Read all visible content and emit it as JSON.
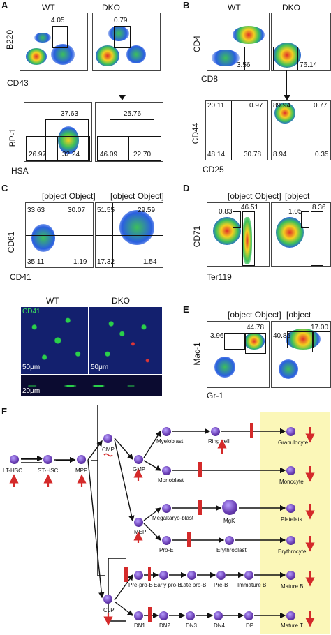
{
  "panels": {
    "A": {
      "label": "A",
      "wt": "WT",
      "dko": "DKO",
      "top": {
        "ylabel": "B220",
        "xlabel": "CD43",
        "wt_val": "4.05",
        "dko_val": "0.79"
      },
      "bottom": {
        "ylabel": "BP-1",
        "xlabel": "HSA",
        "wt": {
          "top": "37.63",
          "bl": "26.97",
          "br": "32.24"
        },
        "dko": {
          "top": "25.76",
          "bl": "46.09",
          "br": "22.70"
        }
      }
    },
    "B": {
      "label": "B",
      "wt": "WT",
      "dko": "DKO",
      "top": {
        "ylabel": "CD4",
        "xlabel": "CD8",
        "wt_val": "3.56",
        "dko_val": "76.14"
      },
      "bottom": {
        "ylabel": "CD44",
        "xlabel": "CD25",
        "wt": {
          "tl": "20.11",
          "tr": "0.97",
          "bl": "48.14",
          "br": "30.78"
        },
        "dko": {
          "tl": "89.94",
          "tr": "0.77",
          "bl": "8.94",
          "br": "0.35"
        }
      }
    },
    "C": {
      "label": "C",
      "wt": {
        "tl": "33.63",
        "tr": "30.07",
        "bl": "35.11",
        "br": "1.19"
      },
      "dko": {
        "tl": "51.55",
        "tr": "29.59",
        "bl": "17.32",
        "br": "1.54"
      },
      "ylabel": "CD61",
      "xlabel": "CD41",
      "micro": {
        "wt": "WT",
        "dko": "DKO",
        "stain": "CD41",
        "scale1": "50μm",
        "scale2": "50μm",
        "scale3": "20μm"
      }
    },
    "D": {
      "label": "D",
      "wt": {
        "a": "0.83",
        "b": "46.51"
      },
      "dko": {
        "a": "1.05",
        "b": "8.36"
      },
      "ylabel": "CD71",
      "xlabel": "Ter119"
    },
    "E": {
      "label": "E",
      "wt": {
        "a": "3.96",
        "b": "44.78"
      },
      "dko": {
        "a": "40.86",
        "b": "17.00"
      },
      "ylabel": "Mac-1",
      "xlabel": "Gr-1"
    },
    "F": {
      "label": "F",
      "nodes": {
        "lthsc": "LT-HSC",
        "sthsc": "ST-HSC",
        "mpp": "MPP",
        "cmp": "CMP",
        "clp": "CLP",
        "gmp": "GMP",
        "mep": "MEP",
        "myeloblast": "Myeloblast",
        "ringcell": "Ring cell",
        "granulocyte": "Granulocyte",
        "monoblast": "Monoblast",
        "monocyte": "Monocyte",
        "megakaryoblast": "Megakaryo-blast",
        "mgk": "MgK",
        "platelets": "Platelets",
        "proe": "Pro-E",
        "erythroblast": "Erythroblast",
        "erythrocyte": "Erythrocyte",
        "preprob": "Pre-pro-B",
        "earlyprob": "Early pro-B",
        "lateprob": "Late pro-B",
        "preb": "Pre-B",
        "immatureb": "Immature B",
        "matureb": "Mature B",
        "dn1": "DN1",
        "dn2": "DN2",
        "dn3": "DN3",
        "dn4": "DN4",
        "dp": "DP",
        "maturet": "Mature T"
      },
      "colors": {
        "arrow": "#d42a2a",
        "highlight": "#fbf7b8"
      }
    }
  }
}
